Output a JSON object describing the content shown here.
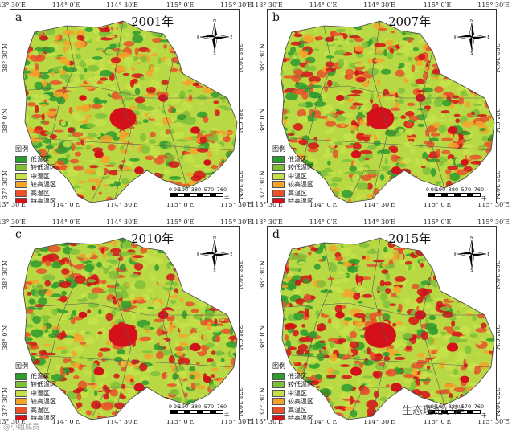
{
  "panels": [
    {
      "label": "a",
      "year": "2001年",
      "hot": 0.18
    },
    {
      "label": "b",
      "year": "2007年",
      "hot": 0.24
    },
    {
      "label": "c",
      "year": "2010年",
      "hot": 0.3
    },
    {
      "label": "d",
      "year": "2015年",
      "hot": 0.42
    }
  ],
  "axes": {
    "lon": [
      "113° 30′E",
      "114° 0′E",
      "114° 30′E",
      "115° 0′E",
      "115° 30′E"
    ],
    "lat_left": [
      "38° 30′N",
      "38° 0′N",
      "37° 30′N"
    ],
    "lat_right": [
      "38° 30′N",
      "38° 0′N",
      "37° 30′N"
    ]
  },
  "legend": {
    "title": "图例",
    "items": [
      {
        "label": "低温区",
        "color": "#2e9b2e"
      },
      {
        "label": "较低温区",
        "color": "#7fbf3a"
      },
      {
        "label": "中温区",
        "color": "#c6e24a"
      },
      {
        "label": "较高温区",
        "color": "#f2a52a"
      },
      {
        "label": "高温区",
        "color": "#e8512a"
      },
      {
        "label": "特高温区",
        "color": "#d4111a"
      }
    ]
  },
  "scale": {
    "ticks": [
      "0",
      "95",
      "190",
      "380",
      "570",
      "760"
    ],
    "unit": "千米"
  },
  "compass": {
    "n": "N",
    "s": "S",
    "e": "E",
    "w": "W"
  },
  "watermark": "生态理论小洋",
  "source": "@小组成员"
}
